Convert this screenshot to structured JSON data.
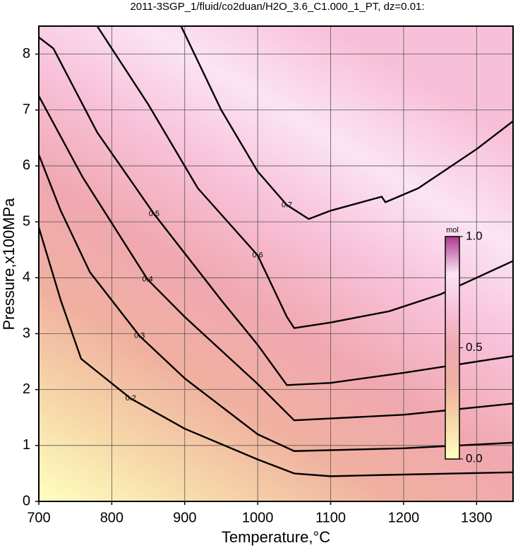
{
  "chart_data": {
    "type": "contour",
    "title": "2011-3SGP_1/fluid/co2duan/H2O_3.6_C1.000_1_PT, dz=0.01:",
    "xlabel": "Temperature,°C",
    "ylabel": "Pressure,x100MPa",
    "xlim": [
      700,
      1350
    ],
    "ylim": [
      0,
      8.5
    ],
    "xticks": [
      700,
      800,
      900,
      1000,
      1100,
      1200,
      1300
    ],
    "yticks": [
      0,
      1,
      2,
      3,
      4,
      5,
      6,
      7,
      8
    ],
    "grid": true,
    "line_color": "#000000",
    "contours": [
      {
        "level": 0.2,
        "x": [
          700,
          730,
          758,
          826,
          900,
          1000,
          1050,
          1100,
          1200,
          1350
        ],
        "y": [
          4.9,
          3.6,
          2.55,
          1.84,
          1.3,
          0.75,
          0.5,
          0.45,
          0.48,
          0.52
        ]
      },
      {
        "level": 0.3,
        "x": [
          700,
          730,
          770,
          838,
          900,
          1000,
          1050,
          1200,
          1350
        ],
        "y": [
          6.2,
          5.2,
          4.1,
          2.96,
          2.2,
          1.2,
          0.9,
          0.95,
          1.05
        ]
      },
      {
        "level": 0.4,
        "x": [
          700,
          760,
          849,
          900,
          1000,
          1050,
          1200,
          1350
        ],
        "y": [
          7.25,
          5.8,
          3.97,
          3.3,
          2.1,
          1.45,
          1.55,
          1.75
        ]
      },
      {
        "level": 0.5,
        "x": [
          700,
          720,
          780,
          858,
          950,
          1000,
          1040,
          1100,
          1200,
          1350
        ],
        "y": [
          8.3,
          8.1,
          6.6,
          5.14,
          3.6,
          2.8,
          2.08,
          2.12,
          2.3,
          2.6
        ]
      },
      {
        "level": 0.6,
        "x": [
          780,
          850,
          918,
          1000,
          1040,
          1050,
          1100,
          1180,
          1250,
          1350
        ],
        "y": [
          8.5,
          7.1,
          5.6,
          4.4,
          3.3,
          3.1,
          3.2,
          3.4,
          3.7,
          4.3
        ]
      },
      {
        "level": 0.7,
        "x": [
          895,
          950,
          1000,
          1040,
          1070,
          1100,
          1170,
          1175,
          1220,
          1300,
          1350
        ],
        "y": [
          8.5,
          7.0,
          5.9,
          5.3,
          5.05,
          5.2,
          5.45,
          5.35,
          5.6,
          6.3,
          6.8
        ]
      }
    ],
    "colorbar": {
      "label": "mol",
      "clim": [
        0,
        1
      ],
      "ticks": [
        {
          "value": 0,
          "label": "0.0"
        },
        {
          "value": 0.5,
          "label": "0.5"
        },
        {
          "value": 1,
          "label": "1.0"
        }
      ],
      "colors": [
        "#ffffc0",
        "#f6d8a8",
        "#f0b0a0",
        "#f0a8b0",
        "#f8c0d8",
        "#fbe4f4",
        "#b03890"
      ]
    }
  }
}
